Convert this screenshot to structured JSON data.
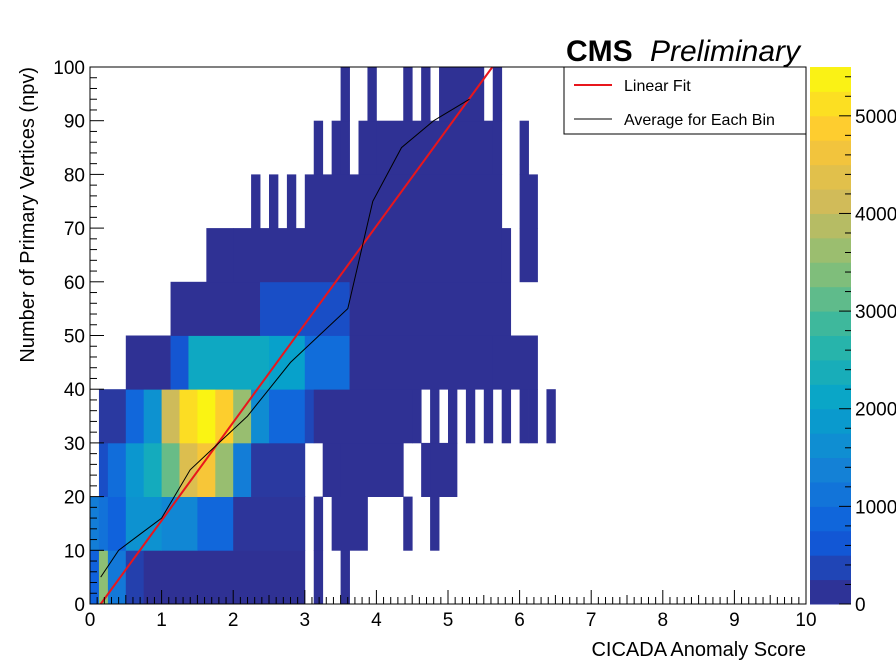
{
  "chart_data": {
    "type": "heatmap",
    "title": "",
    "xlabel": "CICADA Anomaly Score",
    "ylabel": "Number of Primary Vertices (npv)",
    "xlim": [
      0,
      10
    ],
    "ylim": [
      0,
      100
    ],
    "x_ticks": [
      "0",
      "1",
      "2",
      "3",
      "4",
      "5",
      "6",
      "7",
      "8",
      "9",
      "10"
    ],
    "y_ticks": [
      "0",
      "10",
      "20",
      "30",
      "40",
      "50",
      "60",
      "70",
      "80",
      "90",
      "100"
    ],
    "bin_width_x": 0.125,
    "bin_width_y": 10,
    "zlim": [
      0,
      5500
    ],
    "z_ticks": [
      "0",
      "1000",
      "2000",
      "3000",
      "4000",
      "5000"
    ],
    "heatmap_rows": [
      {
        "y0": 0,
        "runs": [
          [
            0,
            0.125,
            800
          ],
          [
            0.125,
            0.25,
            3500
          ],
          [
            0.25,
            0.5,
            1200
          ],
          [
            0.5,
            0.75,
            300
          ],
          [
            0.75,
            3.0,
            100
          ],
          [
            3.125,
            3.25,
            100
          ],
          [
            3.5,
            3.625,
            100
          ]
        ]
      },
      {
        "y0": 10,
        "runs": [
          [
            0,
            0.125,
            1300
          ],
          [
            0.125,
            0.25,
            1100
          ],
          [
            0.25,
            0.5,
            800
          ],
          [
            0.5,
            1.0,
            1700
          ],
          [
            1.0,
            1.5,
            1500
          ],
          [
            1.5,
            2.0,
            900
          ],
          [
            2.0,
            3.0,
            150
          ],
          [
            3.125,
            3.25,
            100
          ],
          [
            3.375,
            3.875,
            100
          ],
          [
            4.375,
            4.5,
            100
          ],
          [
            4.75,
            4.875,
            100
          ]
        ]
      },
      {
        "y0": 20,
        "runs": [
          [
            0.125,
            0.25,
            500
          ],
          [
            0.25,
            0.5,
            1000
          ],
          [
            0.5,
            0.75,
            1800
          ],
          [
            0.75,
            1.0,
            2300
          ],
          [
            1.0,
            1.25,
            3200
          ],
          [
            1.25,
            1.5,
            4300
          ],
          [
            1.5,
            1.75,
            4700
          ],
          [
            1.75,
            2.0,
            3600
          ],
          [
            2.0,
            2.25,
            1300
          ],
          [
            2.25,
            3.0,
            200
          ],
          [
            3.25,
            3.5,
            100
          ],
          [
            3.5,
            4.375,
            100
          ],
          [
            4.625,
            4.75,
            100
          ],
          [
            4.75,
            5.0,
            100
          ],
          [
            5.0,
            5.125,
            100
          ]
        ]
      },
      {
        "y0": 30,
        "runs": [
          [
            0.125,
            0.5,
            200
          ],
          [
            0.5,
            0.75,
            900
          ],
          [
            0.75,
            1.0,
            1700
          ],
          [
            1.0,
            1.25,
            4100
          ],
          [
            1.25,
            1.5,
            5100
          ],
          [
            1.5,
            1.75,
            5400
          ],
          [
            1.75,
            2.0,
            4900
          ],
          [
            2.0,
            2.25,
            3600
          ],
          [
            2.25,
            2.5,
            1600
          ],
          [
            2.5,
            3.0,
            900
          ],
          [
            3.0,
            3.125,
            400
          ],
          [
            3.125,
            4.5,
            100
          ],
          [
            4.5,
            4.625,
            100
          ],
          [
            4.75,
            4.875,
            100
          ],
          [
            5.0,
            5.125,
            100
          ],
          [
            5.25,
            5.375,
            100
          ],
          [
            5.5,
            5.625,
            100
          ],
          [
            5.75,
            5.875,
            100
          ],
          [
            6.0,
            6.125,
            100
          ],
          [
            6.125,
            6.25,
            100
          ],
          [
            6.375,
            6.5,
            100
          ]
        ]
      },
      {
        "y0": 40,
        "runs": [
          [
            0.5,
            1.125,
            100
          ],
          [
            1.125,
            1.375,
            600
          ],
          [
            1.375,
            2.0,
            2200
          ],
          [
            2.0,
            2.5,
            2200
          ],
          [
            2.5,
            3.0,
            2000
          ],
          [
            3.0,
            3.625,
            1000
          ],
          [
            3.625,
            5.625,
            100
          ],
          [
            5.625,
            6.25,
            100
          ]
        ]
      },
      {
        "y0": 50,
        "runs": [
          [
            1.125,
            2.375,
            100
          ],
          [
            2.375,
            3.625,
            500
          ],
          [
            3.625,
            5.875,
            100
          ]
        ]
      },
      {
        "y0": 60,
        "runs": [
          [
            1.625,
            2.0,
            100
          ],
          [
            2.0,
            5.75,
            100
          ],
          [
            5.75,
            5.875,
            100
          ],
          [
            6.0,
            6.25,
            100
          ]
        ]
      },
      {
        "y0": 70,
        "runs": [
          [
            2.25,
            2.375,
            100
          ],
          [
            2.5,
            2.625,
            100
          ],
          [
            2.75,
            2.875,
            100
          ],
          [
            3.0,
            5.75,
            100
          ],
          [
            6.0,
            6.25,
            100
          ]
        ]
      },
      {
        "y0": 80,
        "runs": [
          [
            3.125,
            3.25,
            100
          ],
          [
            3.375,
            3.5,
            100
          ],
          [
            3.5,
            3.625,
            100
          ],
          [
            3.75,
            4.0,
            100
          ],
          [
            4.0,
            5.625,
            100
          ],
          [
            5.625,
            5.75,
            100
          ],
          [
            6.0,
            6.125,
            100
          ]
        ]
      },
      {
        "y0": 90,
        "runs": [
          [
            3.5,
            3.625,
            100
          ],
          [
            3.875,
            4.0,
            100
          ],
          [
            4.375,
            4.5,
            100
          ],
          [
            4.625,
            4.75,
            100
          ],
          [
            4.875,
            5.0,
            100
          ],
          [
            5.0,
            5.5,
            100
          ],
          [
            5.625,
            5.75,
            100
          ]
        ]
      }
    ],
    "series": [
      {
        "name": "Linear Fit",
        "color": "#e8161c",
        "x": [
          0.15,
          5.62
        ],
        "y": [
          0,
          100
        ]
      },
      {
        "name": "Average for Each Bin",
        "color": "#000000",
        "x": [
          0.15,
          0.4,
          0.7,
          1.0,
          1.4,
          1.8,
          2.2,
          2.8,
          3.2,
          3.6,
          3.95,
          4.35,
          4.8,
          5.3
        ],
        "y": [
          5,
          10,
          13,
          16,
          25,
          30,
          35,
          45,
          50,
          55,
          75,
          85,
          90,
          94
        ]
      }
    ],
    "legend": {
      "placement": "top-right"
    },
    "annotation": {
      "bold": "CMS",
      "italic": "Preliminary"
    }
  }
}
